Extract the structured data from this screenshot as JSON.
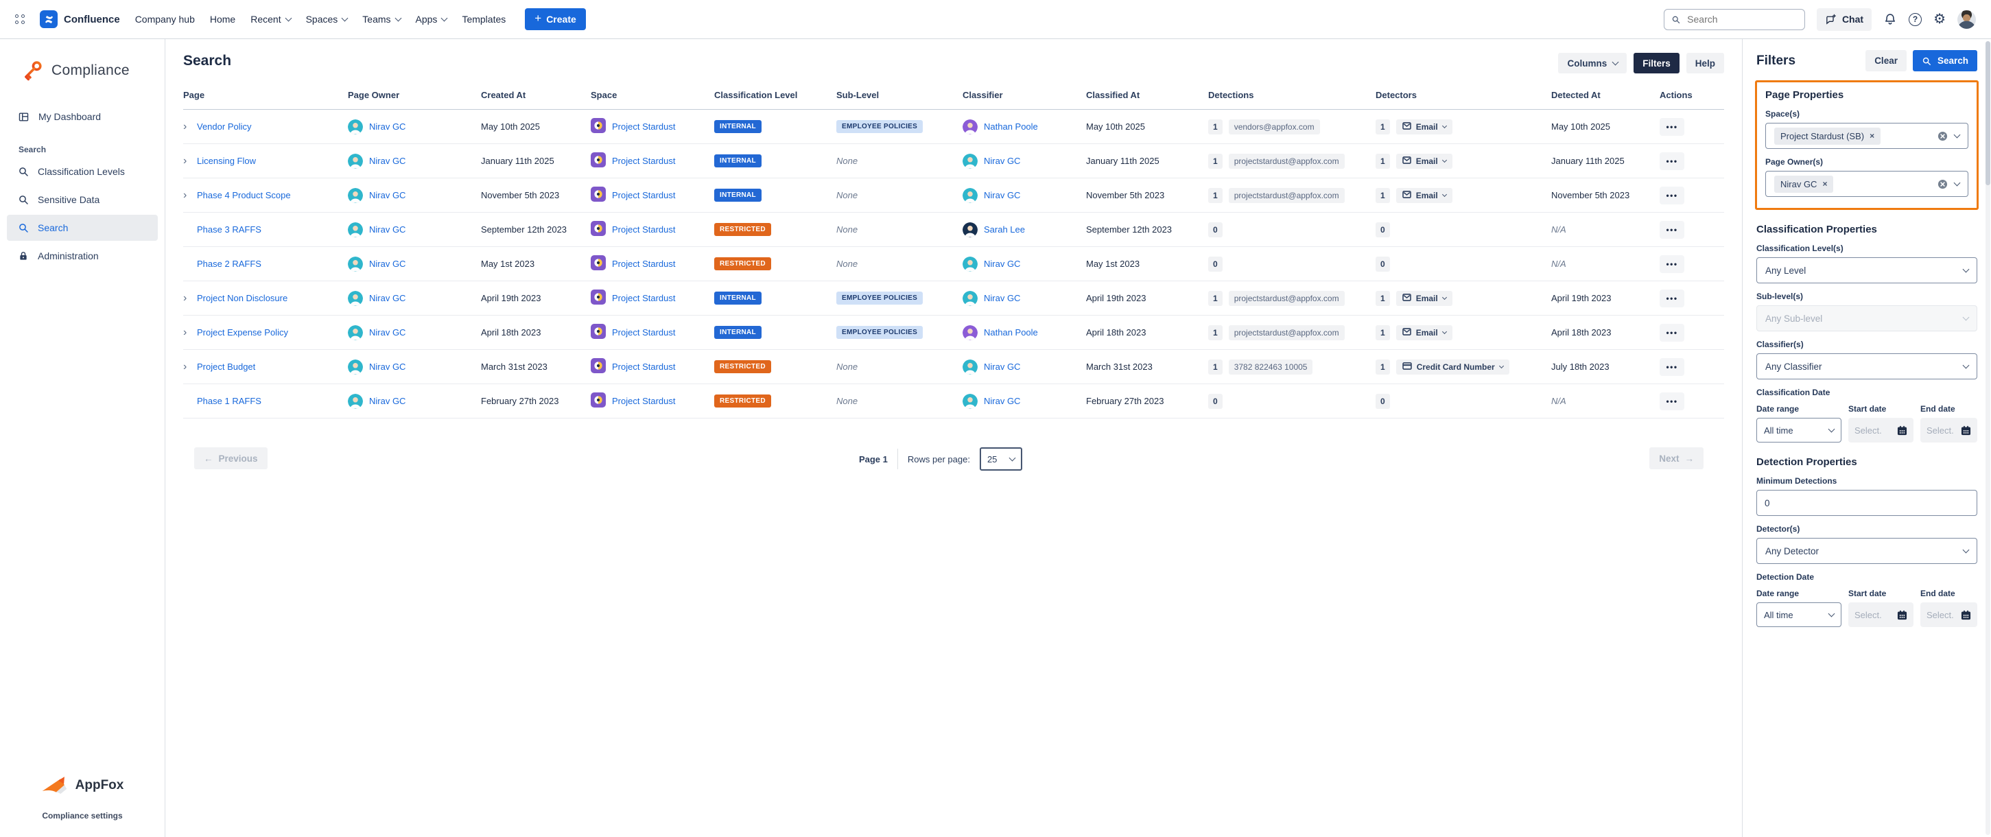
{
  "top_nav": {
    "product": "Confluence",
    "items": [
      "Company hub",
      "Home",
      "Recent",
      "Spaces",
      "Teams",
      "Apps",
      "Templates"
    ],
    "create_label": "Create",
    "search_placeholder": "Search",
    "chat_label": "Chat"
  },
  "icons": {
    "plus": "+",
    "help_glyph": "?",
    "gear_glyph": "⚙",
    "dots": "•••",
    "expand": "›",
    "prev_arrow": "←",
    "next_arrow": "→",
    "chip_close": "×"
  },
  "sidebar": {
    "app_name": "Compliance",
    "dashboard_label": "My Dashboard",
    "section_label": "Search",
    "items": [
      {
        "label": "Classification Levels"
      },
      {
        "label": "Sensitive Data"
      },
      {
        "label": "Search",
        "active": true
      },
      {
        "label": "Administration"
      }
    ],
    "footer_brand": "AppFox",
    "footer_caption": "Compliance settings"
  },
  "main": {
    "title": "Search",
    "toolbar": {
      "columns_label": "Columns",
      "filters_label": "Filters",
      "help_label": "Help"
    },
    "table": {
      "columns": [
        "Page",
        "Page Owner",
        "Created At",
        "Space",
        "Classification Level",
        "Sub-Level",
        "Classifier",
        "Classified At",
        "Detections",
        "Detectors",
        "Detected At",
        "Actions"
      ],
      "none_label": "None",
      "na_label": "N/A",
      "rows": [
        {
          "expandable": true,
          "page": "Vendor Policy",
          "owner": "Nirav GC",
          "created_at": "May 10th 2025",
          "space": "Project Stardust",
          "level": "INTERNAL",
          "sub_level": "EMPLOYEE POLICIES",
          "classifier": "Nathan Poole",
          "classified_at": "May 10th 2025",
          "detections_count": "1",
          "detections_value": "vendors@appfox.com",
          "detectors_count": "1",
          "detector": "Email",
          "detector_icon": "email",
          "detected_at": "May 10th 2025"
        },
        {
          "expandable": true,
          "page": "Licensing Flow",
          "owner": "Nirav GC",
          "created_at": "January 11th 2025",
          "space": "Project Stardust",
          "level": "INTERNAL",
          "sub_level": null,
          "classifier": "Nirav GC",
          "classified_at": "January 11th 2025",
          "detections_count": "1",
          "detections_value": "projectstardust@appfox.com",
          "detectors_count": "1",
          "detector": "Email",
          "detector_icon": "email",
          "detected_at": "January 11th 2025"
        },
        {
          "expandable": true,
          "page": "Phase 4 Product Scope",
          "owner": "Nirav GC",
          "created_at": "November 5th 2023",
          "space": "Project Stardust",
          "level": "INTERNAL",
          "sub_level": null,
          "classifier": "Nirav GC",
          "classified_at": "November 5th 2023",
          "detections_count": "1",
          "detections_value": "projectstardust@appfox.com",
          "detectors_count": "1",
          "detector": "Email",
          "detector_icon": "email",
          "detected_at": "November 5th 2023"
        },
        {
          "expandable": false,
          "page": "Phase 3 RAFFS",
          "owner": "Nirav GC",
          "created_at": "September 12th 2023",
          "space": "Project Stardust",
          "level": "RESTRICTED",
          "sub_level": null,
          "classifier": "Sarah Lee",
          "classified_at": "September 12th 2023",
          "detections_count": "0",
          "detections_value": null,
          "detectors_count": "0",
          "detector": null,
          "detector_icon": null,
          "detected_at": null
        },
        {
          "expandable": false,
          "page": "Phase 2 RAFFS",
          "owner": "Nirav GC",
          "created_at": "May 1st 2023",
          "space": "Project Stardust",
          "level": "RESTRICTED",
          "sub_level": null,
          "classifier": "Nirav GC",
          "classified_at": "May 1st 2023",
          "detections_count": "0",
          "detections_value": null,
          "detectors_count": "0",
          "detector": null,
          "detector_icon": null,
          "detected_at": null
        },
        {
          "expandable": true,
          "page": "Project Non Disclosure",
          "owner": "Nirav GC",
          "created_at": "April 19th 2023",
          "space": "Project Stardust",
          "level": "INTERNAL",
          "sub_level": "EMPLOYEE POLICIES",
          "classifier": "Nirav GC",
          "classified_at": "April 19th 2023",
          "detections_count": "1",
          "detections_value": "projectstardust@appfox.com",
          "detectors_count": "1",
          "detector": "Email",
          "detector_icon": "email",
          "detected_at": "April 19th 2023"
        },
        {
          "expandable": true,
          "page": "Project Expense Policy",
          "owner": "Nirav GC",
          "created_at": "April 18th 2023",
          "space": "Project Stardust",
          "level": "INTERNAL",
          "sub_level": "EMPLOYEE POLICIES",
          "classifier": "Nathan Poole",
          "classified_at": "April 18th 2023",
          "detections_count": "1",
          "detections_value": "projectstardust@appfox.com",
          "detectors_count": "1",
          "detector": "Email",
          "detector_icon": "email",
          "detected_at": "April 18th 2023"
        },
        {
          "expandable": true,
          "page": "Project Budget",
          "owner": "Nirav GC",
          "created_at": "March 31st 2023",
          "space": "Project Stardust",
          "level": "RESTRICTED",
          "sub_level": null,
          "classifier": "Nirav GC",
          "classified_at": "March 31st 2023",
          "detections_count": "1",
          "detections_value": "3782 822463 10005",
          "detectors_count": "1",
          "detector": "Credit Card Number",
          "detector_icon": "card",
          "detected_at": "July 18th 2023"
        },
        {
          "expandable": false,
          "page": "Phase 1 RAFFS",
          "owner": "Nirav GC",
          "created_at": "February 27th 2023",
          "space": "Project Stardust",
          "level": "RESTRICTED",
          "sub_level": null,
          "classifier": "Nirav GC",
          "classified_at": "February 27th 2023",
          "detections_count": "0",
          "detections_value": null,
          "detectors_count": "0",
          "detector": null,
          "detector_icon": null,
          "detected_at": null
        }
      ]
    },
    "pagination": {
      "previous_label": "Previous",
      "page_label": "Page 1",
      "rows_per_page_label": "Rows per page:",
      "rows_per_page_value": "25",
      "next_label": "Next"
    }
  },
  "filters_panel": {
    "title": "Filters",
    "clear_label": "Clear",
    "search_label": "Search",
    "page_properties": {
      "title": "Page Properties",
      "spaces_label": "Space(s)",
      "spaces_chip": "Project Stardust (SB)",
      "owners_label": "Page Owner(s)",
      "owners_chip": "Nirav GC"
    },
    "classification": {
      "title": "Classification Properties",
      "level_label": "Classification Level(s)",
      "level_value": "Any Level",
      "sublevel_label": "Sub-level(s)",
      "sublevel_value": "Any Sub-level",
      "classifier_label": "Classifier(s)",
      "classifier_value": "Any Classifier",
      "date_title": "Classification Date",
      "date_range_label": "Date range",
      "date_range_value": "All time",
      "start_label": "Start date",
      "end_label": "End date",
      "date_placeholder": "Select."
    },
    "detection": {
      "title": "Detection Properties",
      "min_label": "Minimum Detections",
      "min_value": "0",
      "detector_label": "Detector(s)",
      "detector_value": "Any Detector",
      "date_title": "Detection Date",
      "date_range_label": "Date range",
      "date_range_value": "All time",
      "start_label": "Start date",
      "end_label": "End date",
      "date_placeholder": "Select."
    }
  },
  "colors": {
    "accent_blue": "#1868db",
    "dark_button": "#1e2a45",
    "internal_badge": "#2368d4",
    "restricted_badge": "#e0661c",
    "sublevel_badge_bg": "#cfe0f7",
    "sublevel_badge_text": "#1d3a6e",
    "highlight_orange": "#ef7b10",
    "avatars": {
      "Nirav GC": "#2fb6cc",
      "Nathan Poole": "#8b5cd6",
      "Sarah Lee": "#17304f"
    }
  }
}
